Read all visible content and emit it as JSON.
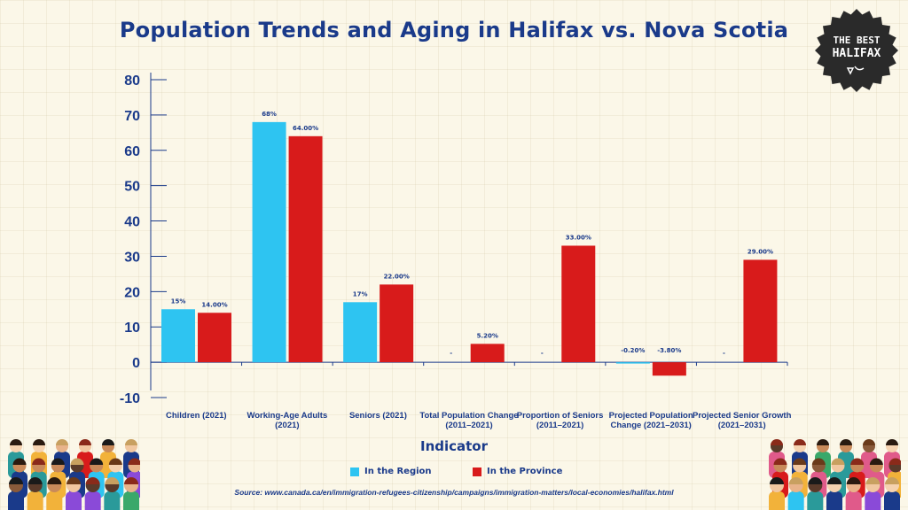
{
  "title": "Population Trends and Aging in Halifax vs. Nova Scotia",
  "badge": {
    "line1": "THE BEST",
    "line2": "HALIFAX"
  },
  "colors": {
    "region": "#2ec4f1",
    "province": "#d81b1b",
    "text": "#1a3a8a",
    "badge": "#2a2a2a"
  },
  "chart_data": {
    "type": "bar",
    "categories": [
      "Children (2021)",
      "Working-Age Adults (2021)",
      "Seniors (2021)",
      "Total Population Change (2011–2021)",
      "Proportion of Seniors (2011–2021)",
      "Projected Population Change (2021–2031)",
      "Projected Senior Growth (2021–2031)"
    ],
    "series": [
      {
        "name": "In the Region",
        "values": [
          15,
          68,
          17,
          null,
          null,
          -0.2,
          null
        ],
        "labels": [
          "15%",
          "68%",
          "17%",
          "-",
          "-",
          "-0.20%",
          "-"
        ]
      },
      {
        "name": "In the Province",
        "values": [
          14,
          64,
          22,
          5.2,
          33,
          -3.8,
          29
        ],
        "labels": [
          "14.00%",
          "64.00%",
          "22.00%",
          "5.20%",
          "33.00%",
          "-3.80%",
          "29.00%"
        ]
      }
    ],
    "xlabel": "Indicator",
    "ylabel": "",
    "ylim": [
      -10,
      80
    ],
    "yticks": [
      -10,
      0,
      10,
      20,
      30,
      40,
      50,
      60,
      70,
      80
    ],
    "legend_position": "bottom"
  },
  "source": "Source: www.canada.ca/en/immigration-refugees-citizenship/campaigns/immigration-matters/local-economies/halifax.html"
}
